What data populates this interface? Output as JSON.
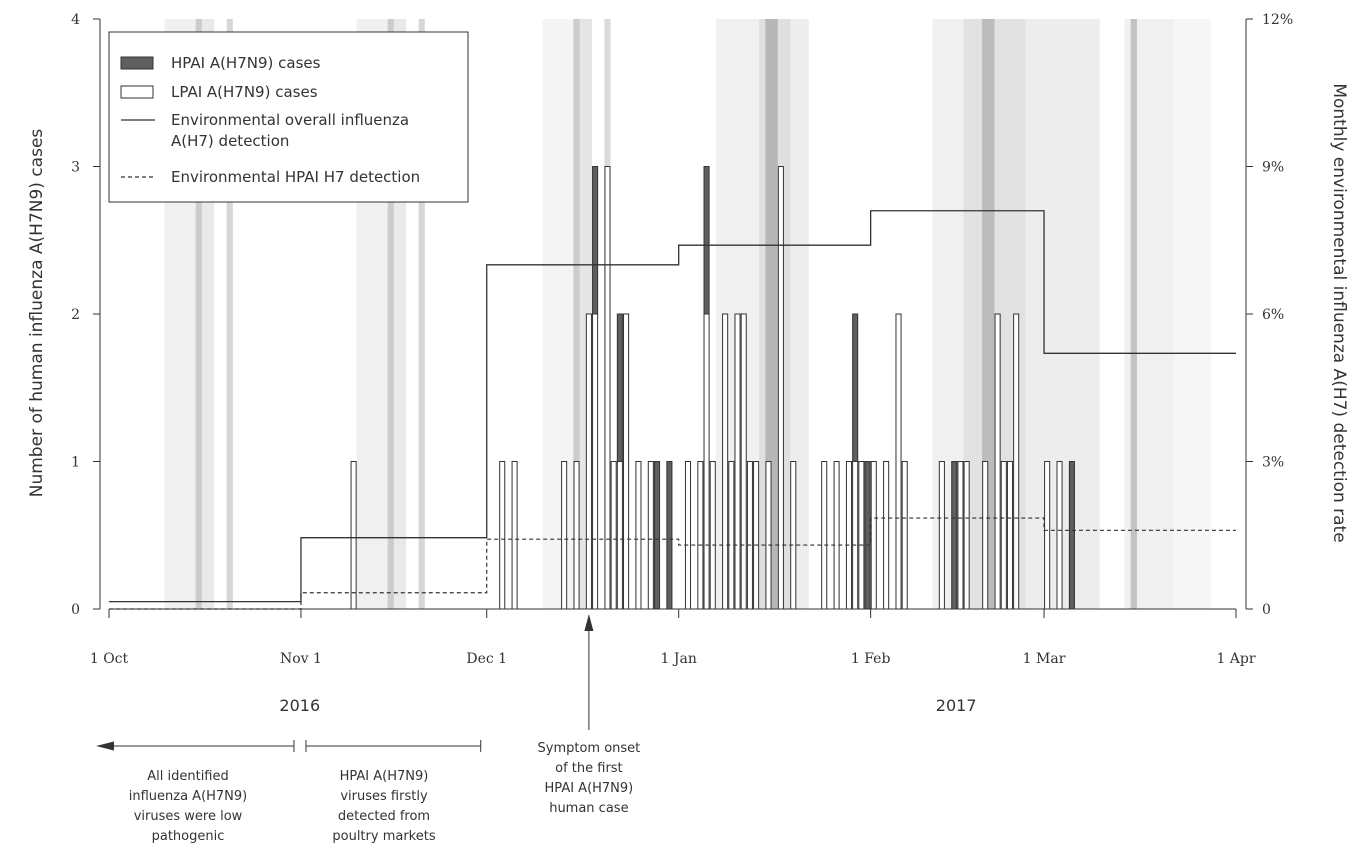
{
  "chart_data": {
    "type": "bar",
    "y_left_label": "Number of human influenza A(H7N9) cases",
    "y_right_label": "Monthly environmental influenza A(H7) detection rate",
    "y_left_ticks": [
      "0",
      "1",
      "2",
      "3",
      "4"
    ],
    "y_left_range": [
      0,
      4
    ],
    "y_right_ticks": [
      "0",
      "3%",
      "6%",
      "9%",
      "12%"
    ],
    "y_right_range": [
      0,
      12
    ],
    "x_range_days": [
      0,
      182
    ],
    "x_ticks": [
      {
        "label": "1 Oct",
        "day": 0
      },
      {
        "label": "Nov 1",
        "day": 31
      },
      {
        "label": "Dec 1",
        "day": 61
      },
      {
        "label": "1 Jan",
        "day": 92
      },
      {
        "label": "1 Feb",
        "day": 123
      },
      {
        "label": "1 Mar",
        "day": 151
      },
      {
        "label": "1 Apr",
        "day": 182
      }
    ],
    "years": [
      {
        "label": "2016",
        "day": 30
      },
      {
        "label": "2017",
        "day": 136
      }
    ],
    "legend": {
      "hpai_cases": "HPAI A(H7N9) cases",
      "lpai_cases": "LPAI A(H7N9) cases",
      "overall_line_1": "Environmental overall influenza",
      "overall_line_2": "A(H7) detection",
      "hpai_env": "Environmental HPAI H7 detection"
    },
    "cases": [
      {
        "day": 39.5,
        "lpai": 1,
        "hpai": 0
      },
      {
        "day": 63.5,
        "lpai": 1,
        "hpai": 0
      },
      {
        "day": 65.5,
        "lpai": 1,
        "hpai": 0
      },
      {
        "day": 73.5,
        "lpai": 1,
        "hpai": 0
      },
      {
        "day": 75.5,
        "lpai": 1,
        "hpai": 0
      },
      {
        "day": 77.5,
        "lpai": 2,
        "hpai": 0
      },
      {
        "day": 78.5,
        "lpai": 2,
        "hpai": 1
      },
      {
        "day": 80.5,
        "lpai": 3,
        "hpai": 0
      },
      {
        "day": 81.5,
        "lpai": 1,
        "hpai": 0
      },
      {
        "day": 82.5,
        "lpai": 1,
        "hpai": 1
      },
      {
        "day": 83.5,
        "lpai": 2,
        "hpai": 0
      },
      {
        "day": 85.5,
        "lpai": 1,
        "hpai": 0
      },
      {
        "day": 87.5,
        "lpai": 1,
        "hpai": 0
      },
      {
        "day": 88.5,
        "lpai": 0,
        "hpai": 1
      },
      {
        "day": 90.5,
        "lpai": 0,
        "hpai": 1
      },
      {
        "day": 93.5,
        "lpai": 1,
        "hpai": 0
      },
      {
        "day": 95.5,
        "lpai": 1,
        "hpai": 0
      },
      {
        "day": 96.5,
        "lpai": 2,
        "hpai": 1
      },
      {
        "day": 97.5,
        "lpai": 1,
        "hpai": 0
      },
      {
        "day": 99.5,
        "lpai": 2,
        "hpai": 0
      },
      {
        "day": 100.5,
        "lpai": 1,
        "hpai": 0
      },
      {
        "day": 101.5,
        "lpai": 2,
        "hpai": 0
      },
      {
        "day": 102.5,
        "lpai": 2,
        "hpai": 0
      },
      {
        "day": 103.5,
        "lpai": 1,
        "hpai": 0
      },
      {
        "day": 104.5,
        "lpai": 1,
        "hpai": 0
      },
      {
        "day": 106.5,
        "lpai": 1,
        "hpai": 0
      },
      {
        "day": 108.5,
        "lpai": 3,
        "hpai": 0
      },
      {
        "day": 110.5,
        "lpai": 1,
        "hpai": 0
      },
      {
        "day": 115.5,
        "lpai": 1,
        "hpai": 0
      },
      {
        "day": 117.5,
        "lpai": 1,
        "hpai": 0
      },
      {
        "day": 119.5,
        "lpai": 1,
        "hpai": 0
      },
      {
        "day": 120.5,
        "lpai": 1,
        "hpai": 1
      },
      {
        "day": 121.5,
        "lpai": 1,
        "hpai": 0
      },
      {
        "day": 122.5,
        "lpai": 0,
        "hpai": 1
      },
      {
        "day": 123.5,
        "lpai": 1,
        "hpai": 0
      },
      {
        "day": 125.5,
        "lpai": 1,
        "hpai": 0
      },
      {
        "day": 127.5,
        "lpai": 2,
        "hpai": 0
      },
      {
        "day": 128.5,
        "lpai": 1,
        "hpai": 0
      },
      {
        "day": 134.5,
        "lpai": 1,
        "hpai": 0
      },
      {
        "day": 136.5,
        "lpai": 0,
        "hpai": 1
      },
      {
        "day": 137.5,
        "lpai": 1,
        "hpai": 0
      },
      {
        "day": 138.5,
        "lpai": 1,
        "hpai": 0
      },
      {
        "day": 141.5,
        "lpai": 1,
        "hpai": 0
      },
      {
        "day": 143.5,
        "lpai": 2,
        "hpai": 0
      },
      {
        "day": 144.5,
        "lpai": 1,
        "hpai": 0
      },
      {
        "day": 145.5,
        "lpai": 1,
        "hpai": 0
      },
      {
        "day": 146.5,
        "lpai": 2,
        "hpai": 0
      },
      {
        "day": 151.5,
        "lpai": 1,
        "hpai": 0
      },
      {
        "day": 153.5,
        "lpai": 1,
        "hpai": 0
      },
      {
        "day": 155.5,
        "lpai": 0,
        "hpai": 1
      }
    ],
    "overall_detection_rate": [
      {
        "start_day": 0,
        "end_day": 31,
        "rate": 0.15
      },
      {
        "start_day": 31,
        "end_day": 61,
        "rate": 1.45
      },
      {
        "start_day": 61,
        "end_day": 92,
        "rate": 7.0
      },
      {
        "start_day": 92,
        "end_day": 123,
        "rate": 7.4
      },
      {
        "start_day": 123,
        "end_day": 151,
        "rate": 8.1
      },
      {
        "start_day": 151,
        "end_day": 182,
        "rate": 5.2
      }
    ],
    "hpai_detection_rate": [
      {
        "start_day": 0,
        "end_day": 31,
        "rate": 0.0
      },
      {
        "start_day": 31,
        "end_day": 61,
        "rate": 0.33
      },
      {
        "start_day": 61,
        "end_day": 92,
        "rate": 1.42
      },
      {
        "start_day": 92,
        "end_day": 123,
        "rate": 1.3
      },
      {
        "start_day": 123,
        "end_day": 151,
        "rate": 1.85
      },
      {
        "start_day": 151,
        "end_day": 182,
        "rate": 1.6
      }
    ],
    "background_bands": [
      {
        "start_day": 9,
        "end_day": 14,
        "shade": 0.1
      },
      {
        "start_day": 14,
        "end_day": 15,
        "shade": 0.35
      },
      {
        "start_day": 15,
        "end_day": 17,
        "shade": 0.15
      },
      {
        "start_day": 19,
        "end_day": 20,
        "shade": 0.28
      },
      {
        "start_day": 40,
        "end_day": 45,
        "shade": 0.1
      },
      {
        "start_day": 45,
        "end_day": 46,
        "shade": 0.35
      },
      {
        "start_day": 46,
        "end_day": 48,
        "shade": 0.15
      },
      {
        "start_day": 50,
        "end_day": 51,
        "shade": 0.28
      },
      {
        "start_day": 70,
        "end_day": 75,
        "shade": 0.08
      },
      {
        "start_day": 75,
        "end_day": 76,
        "shade": 0.35
      },
      {
        "start_day": 76,
        "end_day": 78,
        "shade": 0.18
      },
      {
        "start_day": 80,
        "end_day": 81,
        "shade": 0.25
      },
      {
        "start_day": 98,
        "end_day": 105,
        "shade": 0.1
      },
      {
        "start_day": 105,
        "end_day": 110,
        "shade": 0.22
      },
      {
        "start_day": 106,
        "end_day": 108,
        "shade": 0.35
      },
      {
        "start_day": 110,
        "end_day": 113,
        "shade": 0.12
      },
      {
        "start_day": 133,
        "end_day": 138,
        "shade": 0.1
      },
      {
        "start_day": 138,
        "end_day": 148,
        "shade": 0.2
      },
      {
        "start_day": 141,
        "end_day": 143,
        "shade": 0.32
      },
      {
        "start_day": 148,
        "end_day": 160,
        "shade": 0.12
      },
      {
        "start_day": 164,
        "end_day": 172,
        "shade": 0.1
      },
      {
        "start_day": 165,
        "end_day": 166,
        "shade": 0.35
      },
      {
        "start_day": 172,
        "end_day": 178,
        "shade": 0.06
      }
    ],
    "annotations": {
      "first_case_day": 77.5,
      "first_case_lines": [
        "Symptom onset",
        "of the first",
        "HPAI A(H7N9)",
        "human case"
      ],
      "period1_lines": [
        "All identified",
        "influenza A(H7N9)",
        "viruses were low",
        "pathogenic"
      ],
      "period2_lines": [
        "HPAI A(H7N9)",
        "viruses firstly",
        "detected from",
        "poultry markets"
      ]
    }
  }
}
